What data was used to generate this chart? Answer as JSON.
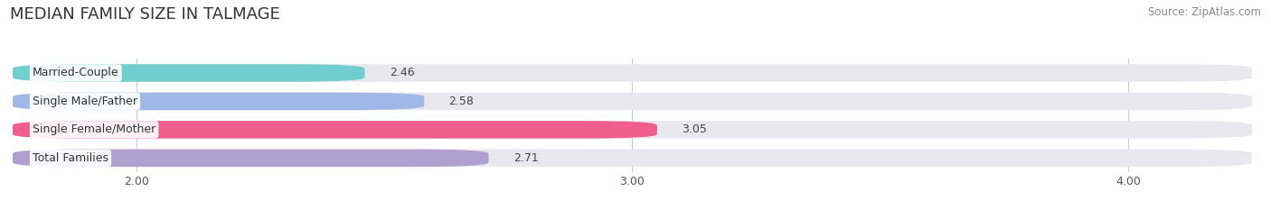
{
  "title": "MEDIAN FAMILY SIZE IN TALMAGE",
  "source": "Source: ZipAtlas.com",
  "categories": [
    "Married-Couple",
    "Single Male/Father",
    "Single Female/Mother",
    "Total Families"
  ],
  "values": [
    2.46,
    2.58,
    3.05,
    2.71
  ],
  "bar_colors": [
    "#70cece",
    "#a0b8e8",
    "#ef5f8e",
    "#b0a0d0"
  ],
  "xlim": [
    1.75,
    4.25
  ],
  "xticks": [
    2.0,
    3.0,
    4.0
  ],
  "xtick_labels": [
    "2.00",
    "3.00",
    "4.00"
  ],
  "bar_height": 0.62,
  "background_color": "#ffffff",
  "bar_bg_color": "#e8e8ee",
  "title_fontsize": 13,
  "label_fontsize": 9,
  "value_fontsize": 9,
  "source_fontsize": 8.5
}
